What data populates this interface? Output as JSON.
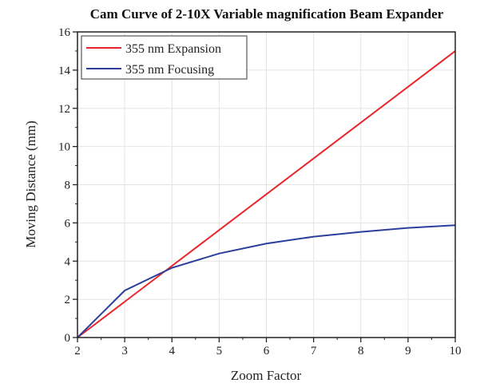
{
  "chart_data": {
    "type": "line",
    "title": "Cam Curve of 2-10X Variable magnification Beam Expander",
    "xlabel": "Zoom Factor",
    "ylabel": "Moving Distance (mm)",
    "xlim": [
      2,
      10
    ],
    "ylim": [
      0,
      16
    ],
    "xticks": [
      2,
      3,
      4,
      5,
      6,
      7,
      8,
      9,
      10
    ],
    "yticks": [
      0,
      2,
      4,
      6,
      8,
      10,
      12,
      14,
      16
    ],
    "grid": true,
    "legend_position": "top-left",
    "x": [
      2,
      3,
      4,
      5,
      6,
      7,
      8,
      9,
      10
    ],
    "series": [
      {
        "name": "355 nm Expansion",
        "color": "#e8262b",
        "values": [
          0,
          1.875,
          3.75,
          5.625,
          7.5,
          9.375,
          11.25,
          13.125,
          15
        ]
      },
      {
        "name": "355 nm Focusing",
        "color": "#2b3f9a",
        "values": [
          0,
          2.46,
          3.65,
          4.4,
          4.92,
          5.28,
          5.53,
          5.74,
          5.88
        ]
      }
    ]
  }
}
